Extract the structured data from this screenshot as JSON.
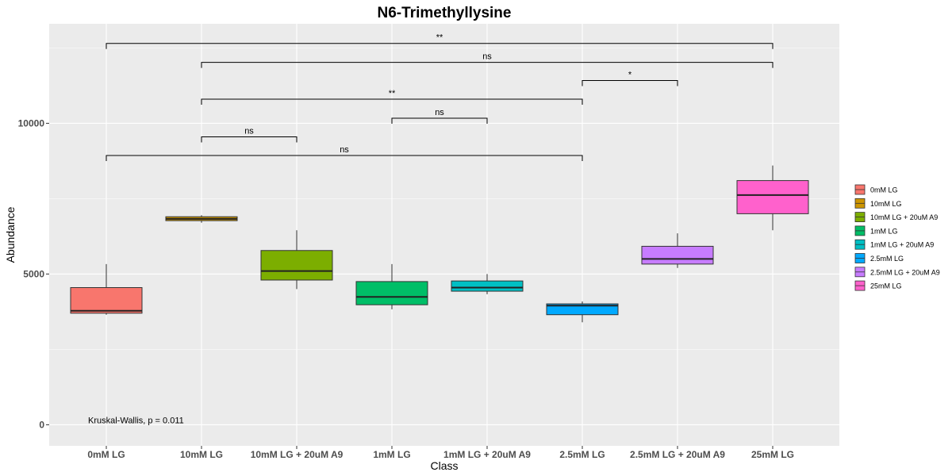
{
  "chart_data": {
    "type": "box",
    "title": "N6-Trimethyllysine",
    "xlabel": "Class",
    "ylabel": "Abundance",
    "ylim": [
      -700,
      13300
    ],
    "yticks": [
      0,
      5000,
      10000
    ],
    "grid": true,
    "legend_position": "right",
    "categories": [
      "0mM LG",
      "10mM LG",
      "10mM LG + 20uM A9",
      "1mM LG",
      "1mM LG + 20uM A9",
      "2.5mM LG",
      "2.5mM LG + 20uM A9",
      "25mM LG"
    ],
    "colors": [
      "#F8766D",
      "#CD9600",
      "#7CAE00",
      "#00BE67",
      "#00BFC4",
      "#00A9FF",
      "#C77CFF",
      "#FF61CC"
    ],
    "boxes": [
      {
        "min": 3650,
        "q1": 3700,
        "median": 3780,
        "q3": 4550,
        "max": 5330
      },
      {
        "min": 6700,
        "q1": 6770,
        "median": 6830,
        "q3": 6900,
        "max": 6950
      },
      {
        "min": 4500,
        "q1": 4800,
        "median": 5100,
        "q3": 5780,
        "max": 6450
      },
      {
        "min": 3830,
        "q1": 3980,
        "median": 4240,
        "q3": 4750,
        "max": 5330
      },
      {
        "min": 4330,
        "q1": 4430,
        "median": 4550,
        "q3": 4770,
        "max": 5000
      },
      {
        "min": 3400,
        "q1": 3650,
        "median": 3950,
        "q3": 4010,
        "max": 4090
      },
      {
        "min": 5200,
        "q1": 5330,
        "median": 5500,
        "q3": 5920,
        "max": 6350
      },
      {
        "min": 6450,
        "q1": 7000,
        "median": 7620,
        "q3": 8100,
        "max": 8600
      }
    ],
    "comparisons": [
      {
        "from": 0,
        "to": 7,
        "y": 12650,
        "label": "**"
      },
      {
        "from": 1,
        "to": 7,
        "y": 12020,
        "label": "ns"
      },
      {
        "from": 5,
        "to": 6,
        "y": 11420,
        "label": "*"
      },
      {
        "from": 1,
        "to": 5,
        "y": 10800,
        "label": "**"
      },
      {
        "from": 3,
        "to": 4,
        "y": 10170,
        "label": "ns"
      },
      {
        "from": 1,
        "to": 2,
        "y": 9550,
        "label": "ns"
      },
      {
        "from": 0,
        "to": 5,
        "y": 8930,
        "label": "ns"
      }
    ],
    "annotation": {
      "text": "Kruskal-Wallis, p = 0.011",
      "y": 150
    }
  }
}
